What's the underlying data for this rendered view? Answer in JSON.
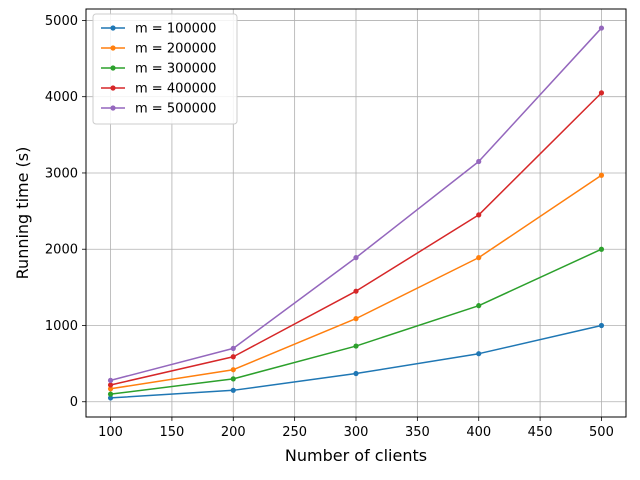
{
  "chart_data": {
    "type": "line",
    "xlabel": "Number of clients",
    "ylabel": "Running time (s)",
    "x": [
      100,
      200,
      300,
      400,
      500
    ],
    "xlim": [
      80,
      520
    ],
    "ylim": [
      -200,
      5150
    ],
    "xticks": [
      100,
      150,
      200,
      250,
      300,
      350,
      400,
      450,
      500
    ],
    "yticks": [
      0,
      1000,
      2000,
      3000,
      4000,
      5000
    ],
    "grid": true,
    "legend_position": "top-left",
    "series": [
      {
        "name": "m = 100000",
        "color": "#1f77b4",
        "values": [
          50,
          150,
          370,
          630,
          1000
        ]
      },
      {
        "name": "m = 200000",
        "color": "#ff7f0e",
        "values": [
          170,
          420,
          1090,
          1890,
          2970
        ]
      },
      {
        "name": "m = 300000",
        "color": "#2ca02c",
        "values": [
          100,
          300,
          730,
          1260,
          2000
        ]
      },
      {
        "name": "m = 400000",
        "color": "#d62728",
        "values": [
          220,
          590,
          1450,
          2450,
          4050
        ]
      },
      {
        "name": "m = 500000",
        "color": "#9467bd",
        "values": [
          280,
          700,
          1890,
          3150,
          4900
        ]
      }
    ]
  }
}
